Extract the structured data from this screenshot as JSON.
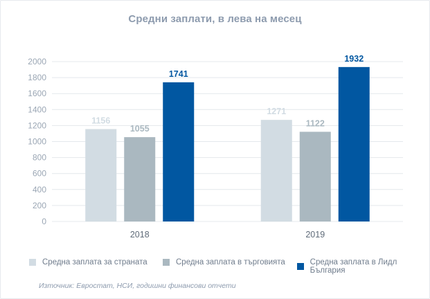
{
  "colors": {
    "series_country": "#d2dce3",
    "series_trade": "#aab8c0",
    "series_lidl": "#0157a1",
    "title": "#8d9bae",
    "grid": "#e4e8ec",
    "axis_text": "#9aa6b4"
  },
  "chart_data": {
    "type": "bar",
    "title": "Средни заплати, в лева на месец",
    "categories": [
      "2018",
      "2019"
    ],
    "series": [
      {
        "name": "Средна заплата за страната",
        "values": [
          1156,
          1271
        ]
      },
      {
        "name": "Средна заплата в търговията",
        "values": [
          1055,
          1122
        ]
      },
      {
        "name": "Средна заплата в Лидл България",
        "values": [
          1741,
          1932
        ]
      }
    ],
    "ylim": [
      0,
      2000
    ],
    "yticks": [
      "0",
      "200",
      "400",
      "600",
      "800",
      "1000",
      "1200",
      "1400",
      "1600",
      "1800",
      "2000"
    ],
    "xlabel": "",
    "ylabel": "",
    "grid": true,
    "legend_position": "bottom"
  },
  "source_text": "Източник: Евростат, НСИ, годишни финансови отчети"
}
